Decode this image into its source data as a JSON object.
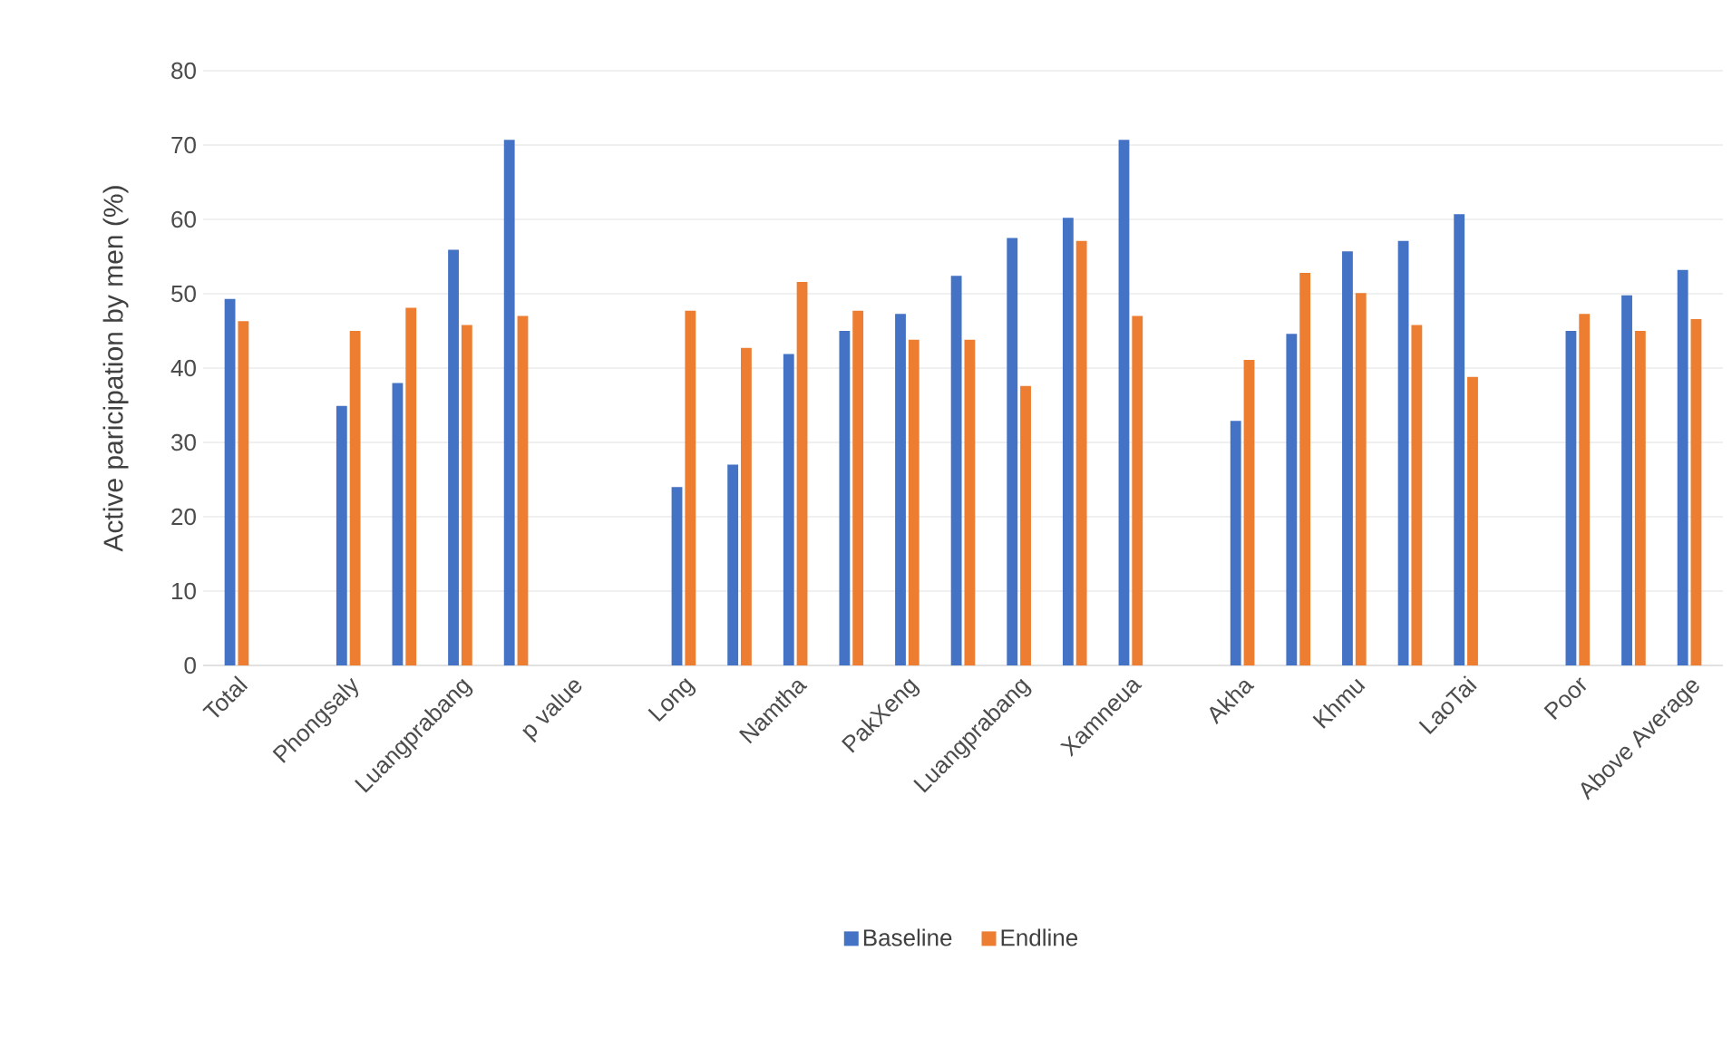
{
  "chart_data": {
    "type": "bar",
    "ylabel": "Active paricipation by men (%)",
    "categories": [
      "Total",
      null,
      "Phongsaly",
      null,
      "Luangprabang",
      null,
      "p value",
      null,
      "Long",
      null,
      "Namtha",
      null,
      "PakXeng",
      null,
      "Luangprabang",
      null,
      "Xamneua",
      null,
      "Akha",
      null,
      "Khmu",
      null,
      "LaoTai",
      null,
      "Poor",
      null,
      "Above Average"
    ],
    "series": [
      {
        "name": "Baseline",
        "color": "#4472c4",
        "values": [
          49.3,
          null,
          34.9,
          38.0,
          55.9,
          70.7,
          null,
          null,
          24.0,
          27.0,
          41.9,
          45.0,
          47.3,
          52.4,
          57.5,
          60.2,
          70.7,
          null,
          32.9,
          44.6,
          55.7,
          57.1,
          60.7,
          null,
          45.0,
          49.8,
          53.2
        ]
      },
      {
        "name": "Endline",
        "color": "#ed7d31",
        "values": [
          46.3,
          null,
          45.0,
          48.1,
          45.8,
          47.0,
          null,
          null,
          47.7,
          42.7,
          51.6,
          47.7,
          43.8,
          43.8,
          37.6,
          57.1,
          47.0,
          null,
          41.1,
          52.8,
          50.1,
          45.8,
          38.8,
          null,
          47.3,
          45.0,
          46.6
        ]
      }
    ],
    "ylim": [
      0,
      80
    ],
    "yticks": [
      0,
      10,
      20,
      30,
      40,
      50,
      60,
      70,
      80
    ],
    "grid": "y",
    "legend": "bottom"
  }
}
